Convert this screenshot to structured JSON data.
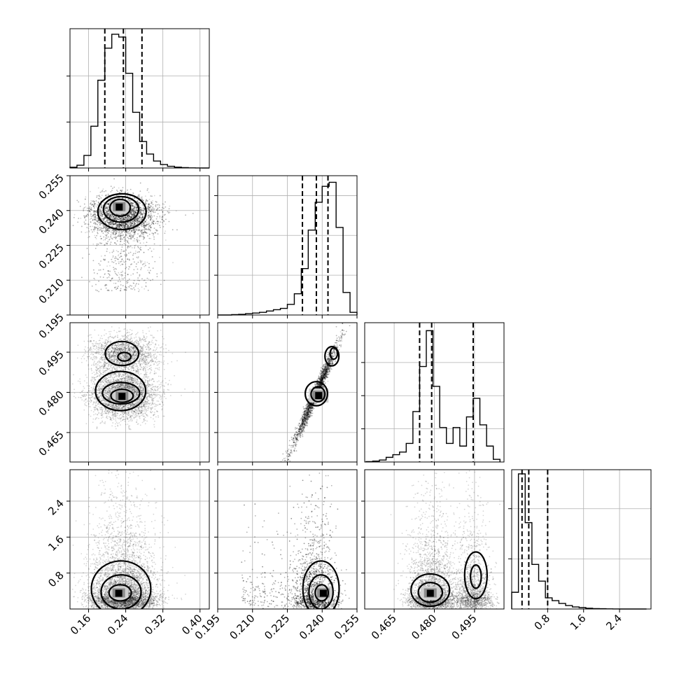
{
  "chart_data": {
    "type": "corner",
    "title": "",
    "grid": true,
    "parameters": [
      {
        "index": 0,
        "range": [
          0.12,
          0.42
        ],
        "ticks": [
          0.16,
          0.24,
          0.32,
          0.4
        ],
        "tick_labels": [
          "0.16",
          "0.24",
          "0.32",
          "0.40"
        ],
        "mean": 0.235,
        "sd": 0.035
      },
      {
        "index": 1,
        "range": [
          0.195,
          0.255
        ],
        "ticks": [
          0.195,
          0.21,
          0.225,
          0.24,
          0.255
        ],
        "tick_labels": [
          "0.195",
          "0.210",
          "0.225",
          "0.240",
          "0.255"
        ],
        "mean": 0.2365,
        "sd": 0.007
      },
      {
        "index": 2,
        "range": [
          0.454,
          0.506
        ],
        "ticks": [
          0.465,
          0.48,
          0.495
        ],
        "tick_labels": [
          "0.465",
          "0.480",
          "0.495"
        ],
        "mean": 0.483,
        "sd": 0.008
      },
      {
        "index": 3,
        "range": [
          0.0,
          3.1
        ],
        "ticks": [
          0.8,
          1.6,
          2.4
        ],
        "tick_labels": [
          "0.8",
          "1.6",
          "2.4"
        ],
        "mean": 0.55,
        "sd": 0.3
      }
    ],
    "histograms": [
      {
        "param": 0,
        "bin_edges": [
          0.12,
          0.135,
          0.15,
          0.165,
          0.18,
          0.195,
          0.21,
          0.225,
          0.24,
          0.255,
          0.27,
          0.285,
          0.3,
          0.315,
          0.33,
          0.345,
          0.36,
          0.375,
          0.39,
          0.405,
          0.42
        ],
        "counts": [
          0.5,
          2,
          9,
          30,
          63,
          86,
          96,
          94,
          68,
          40,
          19,
          10,
          5,
          2.5,
          1.2,
          0.6,
          0.3,
          0.1,
          0.05,
          0.0
        ],
        "quantiles": [
          0.195,
          0.235,
          0.275
        ],
        "ymax": 100,
        "yticks": [
          33,
          66
        ]
      },
      {
        "param": 1,
        "bin_edges": [
          0.195,
          0.198,
          0.201,
          0.204,
          0.207,
          0.21,
          0.213,
          0.216,
          0.219,
          0.222,
          0.225,
          0.228,
          0.231,
          0.234,
          0.237,
          0.24,
          0.243,
          0.246,
          0.249,
          0.252,
          0.255
        ],
        "counts": [
          0,
          0,
          0.3,
          0.5,
          1,
          1.5,
          2,
          3,
          4,
          5,
          8,
          16,
          35,
          64,
          85,
          97,
          100,
          66,
          17,
          2
        ],
        "quantiles": [
          0.2315,
          0.2375,
          0.2425
        ],
        "ymax": 105,
        "yticks": [
          30,
          60,
          90
        ]
      },
      {
        "param": 2,
        "bin_edges": [
          0.4545,
          0.457,
          0.4595,
          0.462,
          0.4645,
          0.467,
          0.4695,
          0.472,
          0.4745,
          0.477,
          0.4795,
          0.482,
          0.4845,
          0.487,
          0.4895,
          0.492,
          0.4945,
          0.497,
          0.4995,
          0.502,
          0.5045
        ],
        "counts": [
          0.3,
          0.7,
          1.5,
          3.5,
          5.5,
          7.5,
          14,
          38,
          72,
          99,
          57,
          26,
          14,
          26,
          12,
          34,
          48,
          28,
          12,
          2
        ],
        "quantiles": [
          0.4745,
          0.479,
          0.4945
        ],
        "ymax": 105,
        "yticks": [
          25,
          50,
          75
        ]
      },
      {
        "param": 3,
        "bin_edges": [
          0.0,
          0.15,
          0.3,
          0.45,
          0.6,
          0.75,
          0.9,
          1.05,
          1.2,
          1.35,
          1.5,
          1.65,
          1.8,
          1.95,
          2.1,
          2.25,
          2.4,
          2.55,
          2.7,
          2.85,
          3.0
        ],
        "counts": [
          12,
          97,
          62,
          32,
          20,
          8,
          6,
          4,
          2.5,
          1.5,
          1,
          0.5,
          0.3,
          0.2,
          0.1,
          0.05,
          0.0,
          0.0,
          0.0,
          0.0
        ],
        "quantiles": [
          0.23,
          0.38,
          0.8
        ],
        "ymax": 100,
        "yticks": [
          36,
          72
        ]
      }
    ],
    "pairs": [
      {
        "x": 0,
        "y": 1,
        "samples": 5000,
        "peak": [
          0.226,
          0.2415
        ],
        "contours": [
          {
            "center": [
              0.232,
              0.2395
            ],
            "radii": [
              0.052,
              0.0077
            ]
          },
          {
            "center": [
              0.23,
              0.2405
            ],
            "radii": [
              0.038,
              0.0055
            ]
          },
          {
            "center": [
              0.228,
              0.2412
            ],
            "radii": [
              0.022,
              0.0036
            ]
          }
        ]
      },
      {
        "x": 0,
        "y": 2,
        "samples": 5000,
        "peak": [
          0.232,
          0.4785
        ],
        "contours": [
          {
            "center": [
              0.229,
              0.4805
            ],
            "radii": [
              0.054,
              0.0073
            ]
          },
          {
            "center": [
              0.232,
              0.4945
            ],
            "radii": [
              0.036,
              0.0045
            ]
          },
          {
            "center": [
              0.23,
              0.4797
            ],
            "radii": [
              0.04,
              0.004
            ]
          },
          {
            "center": [
              0.232,
              0.4787
            ],
            "radii": [
              0.024,
              0.0024
            ]
          },
          {
            "center": [
              0.237,
              0.4933
            ],
            "radii": [
              0.014,
              0.0016
            ]
          }
        ]
      },
      {
        "x": 1,
        "y": 2,
        "samples": 4000,
        "peak": [
          0.2385,
          0.4788
        ],
        "contours": [
          {
            "center": [
              0.2375,
              0.4795
            ],
            "radii": [
              0.0048,
              0.0045
            ]
          },
          {
            "center": [
              0.2442,
              0.4935
            ],
            "radii": [
              0.003,
              0.0036
            ]
          },
          {
            "center": [
              0.2382,
              0.4793
            ],
            "radii": [
              0.003,
              0.0028
            ]
          },
          {
            "center": [
              0.245,
              0.4945
            ],
            "radii": [
              0.0016,
              0.0021
            ]
          }
        ]
      },
      {
        "x": 0,
        "y": 3,
        "samples": 5000,
        "peak": [
          0.225,
          0.35
        ],
        "contours": [
          {
            "center": [
              0.23,
              0.45
            ],
            "radii": [
              0.064,
              0.62
            ]
          },
          {
            "center": [
              0.23,
              0.38
            ],
            "radii": [
              0.043,
              0.38
            ]
          },
          {
            "center": [
              0.228,
              0.36
            ],
            "radii": [
              0.024,
              0.18
            ]
          }
        ]
      },
      {
        "x": 1,
        "y": 3,
        "samples": 4000,
        "peak": [
          0.2405,
          0.35
        ],
        "contours": [
          {
            "center": [
              0.2395,
              0.45
            ],
            "radii": [
              0.0078,
              0.62
            ]
          },
          {
            "center": [
              0.2395,
              0.38
            ],
            "radii": [
              0.0052,
              0.38
            ]
          },
          {
            "center": [
              0.2398,
              0.36
            ],
            "radii": [
              0.0028,
              0.18
            ]
          }
        ]
      },
      {
        "x": 2,
        "y": 3,
        "samples": 4500,
        "peak": [
          0.4785,
          0.35
        ],
        "contours": [
          {
            "center": [
              0.4785,
              0.42
            ],
            "radii": [
              0.0072,
              0.36
            ]
          },
          {
            "center": [
              0.4955,
              0.75
            ],
            "radii": [
              0.0042,
              0.52
            ]
          },
          {
            "center": [
              0.4785,
              0.37
            ],
            "radii": [
              0.0045,
              0.22
            ]
          },
          {
            "center": [
              0.4955,
              0.72
            ],
            "radii": [
              0.002,
              0.26
            ]
          }
        ]
      }
    ]
  }
}
